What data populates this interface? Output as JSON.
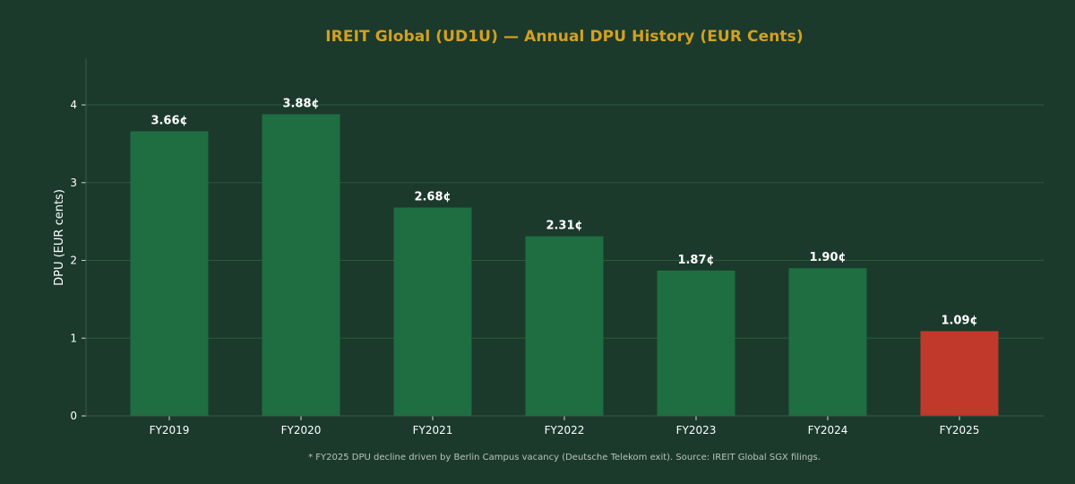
{
  "chart_data": {
    "type": "bar",
    "title": "IREIT Global (UD1U) — Annual DPU History (EUR Cents)",
    "xlabel": "",
    "ylabel": "DPU (EUR cents)",
    "categories": [
      "FY2019",
      "FY2020",
      "FY2021",
      "FY2022",
      "FY2023",
      "FY2024",
      "FY2025"
    ],
    "values": [
      3.66,
      3.88,
      2.68,
      2.31,
      1.87,
      1.9,
      1.09
    ],
    "data_labels": [
      "3.66¢",
      "3.88¢",
      "2.68¢",
      "2.31¢",
      "1.87¢",
      "1.90¢",
      "1.09¢"
    ],
    "ylim": [
      0,
      4.6
    ],
    "yticks": [
      0,
      1,
      2,
      3,
      4
    ],
    "grid": true,
    "colors": {
      "bar": "#1e6e42",
      "highlight_bar": "#c0392b",
      "highlight_category": "FY2025",
      "title": "#d4a020",
      "background": "#1b3a2b"
    }
  },
  "footnote": "* FY2025 DPU decline driven by Berlin Campus vacancy (Deutsche Telekom exit). Source: IREIT Global SGX filings."
}
